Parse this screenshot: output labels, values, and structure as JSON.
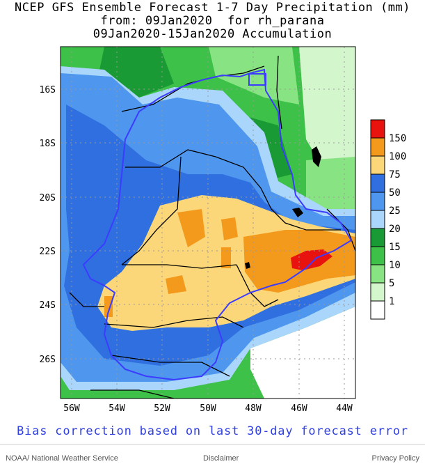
{
  "map": {
    "title_line1": "NCEP GFS Ensemble Forecast 1-7 Day Precipitation (mm)",
    "title_line2": "from: 09Jan2020  for rh_parana",
    "title_line3": "09Jan2020-15Jan2020 Accumulation",
    "bias_note": "Bias correction based on last 30-day forecast error",
    "lat_labels": [
      "16S",
      "18S",
      "20S",
      "22S",
      "24S",
      "26S"
    ],
    "lon_labels": [
      "56W",
      "54W",
      "52W",
      "50W",
      "48W",
      "46W",
      "44W"
    ],
    "legend": {
      "levels": [
        {
          "label": "150",
          "color": "#e8120e"
        },
        {
          "label": "100",
          "color": "#f39a1c"
        },
        {
          "label": "75",
          "color": "#fbd779"
        },
        {
          "label": "50",
          "color": "#2f6fe0"
        },
        {
          "label": "25",
          "color": "#4f97ee"
        },
        {
          "label": "20",
          "color": "#a9d6fa"
        },
        {
          "label": "15",
          "color": "#1a9a34"
        },
        {
          "label": "10",
          "color": "#3dc148"
        },
        {
          "label": "5",
          "color": "#88e482"
        },
        {
          "label": "1",
          "color": "#d4f6cd"
        },
        {
          "label": "",
          "color": "#ffffff"
        }
      ]
    },
    "colors": {
      "boundary": "#3c3cff",
      "border": "#000000",
      "grid": "#9a9a9a",
      "footer_text": "#2f3fe0"
    }
  },
  "footer": {
    "left": "NOAA/ National Weather Service",
    "center": "Disclaimer",
    "right": "Privacy Policy"
  }
}
